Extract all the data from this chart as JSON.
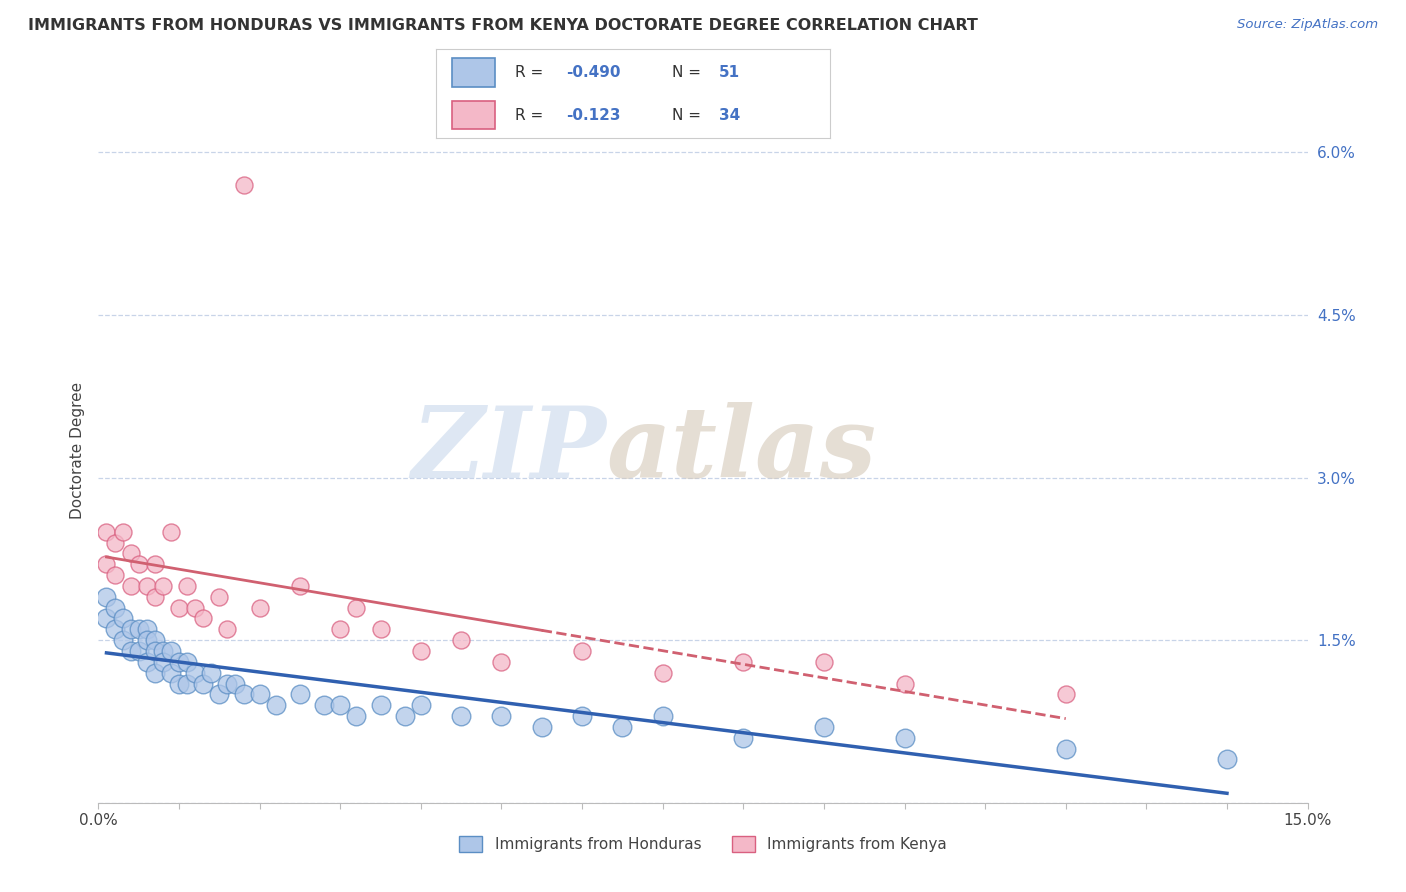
{
  "title": "IMMIGRANTS FROM HONDURAS VS IMMIGRANTS FROM KENYA DOCTORATE DEGREE CORRELATION CHART",
  "source": "Source: ZipAtlas.com",
  "ylabel": "Doctorate Degree",
  "xlim": [
    0.0,
    0.15
  ],
  "ylim": [
    0.0,
    0.065
  ],
  "r_honduras": -0.49,
  "n_honduras": 51,
  "r_kenya": -0.123,
  "n_kenya": 34,
  "color_honduras_fill": "#aec6e8",
  "color_honduras_edge": "#5b8ec4",
  "color_kenya_fill": "#f4b8c8",
  "color_kenya_edge": "#d96080",
  "color_line_honduras": "#3060b0",
  "color_line_kenya": "#d06070",
  "background_color": "#ffffff",
  "grid_color": "#c8d4e8",
  "honduras_x": [
    0.001,
    0.001,
    0.002,
    0.002,
    0.003,
    0.003,
    0.004,
    0.004,
    0.005,
    0.005,
    0.006,
    0.006,
    0.006,
    0.007,
    0.007,
    0.007,
    0.008,
    0.008,
    0.009,
    0.009,
    0.01,
    0.01,
    0.011,
    0.011,
    0.012,
    0.013,
    0.014,
    0.015,
    0.016,
    0.017,
    0.018,
    0.02,
    0.022,
    0.025,
    0.028,
    0.03,
    0.032,
    0.035,
    0.038,
    0.04,
    0.045,
    0.05,
    0.055,
    0.06,
    0.065,
    0.07,
    0.08,
    0.09,
    0.1,
    0.12,
    0.14
  ],
  "honduras_y": [
    0.019,
    0.017,
    0.018,
    0.016,
    0.017,
    0.015,
    0.016,
    0.014,
    0.016,
    0.014,
    0.016,
    0.015,
    0.013,
    0.015,
    0.014,
    0.012,
    0.014,
    0.013,
    0.014,
    0.012,
    0.013,
    0.011,
    0.013,
    0.011,
    0.012,
    0.011,
    0.012,
    0.01,
    0.011,
    0.011,
    0.01,
    0.01,
    0.009,
    0.01,
    0.009,
    0.009,
    0.008,
    0.009,
    0.008,
    0.009,
    0.008,
    0.008,
    0.007,
    0.008,
    0.007,
    0.008,
    0.006,
    0.007,
    0.006,
    0.005,
    0.004
  ],
  "kenya_x": [
    0.001,
    0.001,
    0.002,
    0.002,
    0.003,
    0.004,
    0.004,
    0.005,
    0.006,
    0.007,
    0.007,
    0.008,
    0.009,
    0.01,
    0.011,
    0.012,
    0.013,
    0.015,
    0.016,
    0.018,
    0.02,
    0.025,
    0.03,
    0.032,
    0.035,
    0.04,
    0.045,
    0.05,
    0.06,
    0.07,
    0.08,
    0.09,
    0.1,
    0.12
  ],
  "kenya_y": [
    0.025,
    0.022,
    0.024,
    0.021,
    0.025,
    0.023,
    0.02,
    0.022,
    0.02,
    0.022,
    0.019,
    0.02,
    0.025,
    0.018,
    0.02,
    0.018,
    0.017,
    0.019,
    0.016,
    0.057,
    0.018,
    0.02,
    0.016,
    0.018,
    0.016,
    0.014,
    0.015,
    0.013,
    0.014,
    0.012,
    0.013,
    0.013,
    0.011,
    0.01
  ],
  "watermark_zip_color": "#c8d8ec",
  "watermark_atlas_color": "#d4c8b8"
}
